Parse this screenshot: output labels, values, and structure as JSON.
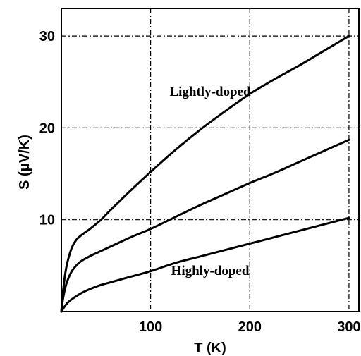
{
  "chart_data": {
    "type": "line",
    "xlabel": "T (K)",
    "ylabel": "S (μV/K)",
    "xlim": [
      10,
      310
    ],
    "ylim": [
      0,
      33
    ],
    "xticks": [
      100,
      200,
      300
    ],
    "yticks": [
      10,
      20,
      30
    ],
    "grid": true,
    "grid_style": "dash-dot",
    "series": [
      {
        "x": [
          10,
          12,
          15,
          20,
          25,
          30,
          40,
          50,
          60,
          80,
          100,
          125,
          150,
          175,
          200,
          225,
          250,
          275,
          300
        ],
        "y": [
          0,
          2.5,
          4.8,
          6.8,
          7.8,
          8.3,
          9.1,
          10.0,
          11.1,
          13.2,
          15.2,
          17.6,
          19.8,
          21.8,
          23.7,
          25.3,
          26.8,
          28.4,
          30.0
        ]
      },
      {
        "x": [
          10,
          12,
          15,
          20,
          25,
          30,
          40,
          50,
          60,
          80,
          100,
          125,
          150,
          175,
          200,
          225,
          250,
          275,
          300
        ],
        "y": [
          0,
          1.6,
          3.0,
          4.3,
          5.0,
          5.5,
          6.1,
          6.6,
          7.1,
          8.1,
          9.0,
          10.3,
          11.6,
          12.8,
          14.0,
          15.1,
          16.3,
          17.5,
          18.7
        ]
      },
      {
        "x": [
          10,
          15,
          20,
          30,
          40,
          50,
          60,
          80,
          100,
          125,
          150,
          175,
          200,
          225,
          250,
          275,
          300
        ],
        "y": [
          0,
          0.8,
          1.3,
          2.0,
          2.5,
          2.9,
          3.2,
          3.8,
          4.4,
          5.3,
          6.0,
          6.7,
          7.4,
          8.1,
          8.8,
          9.5,
          10.2
        ]
      }
    ],
    "annotations": [
      {
        "text": "Lightly-doped",
        "x": 160,
        "y": 23.5
      },
      {
        "text": "Highly-doped",
        "x": 160,
        "y": 4.0
      }
    ]
  }
}
